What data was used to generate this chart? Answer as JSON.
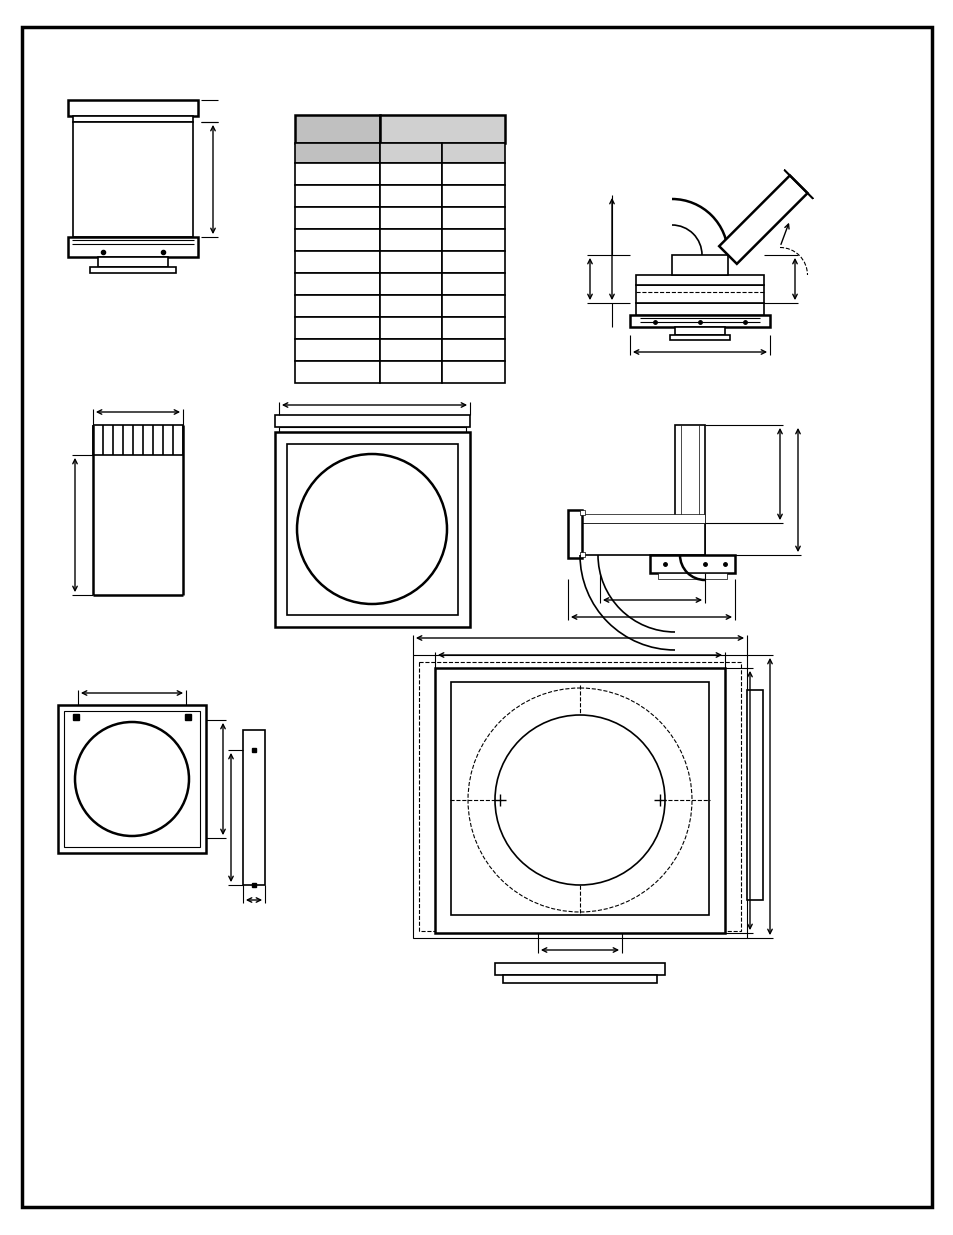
{
  "bg_color": "#ffffff",
  "line_color": "#000000",
  "gray_fill": "#c0c0c0",
  "light_gray": "#d0d0d0",
  "fig_w": 9.54,
  "fig_h": 12.35,
  "dpi": 100
}
